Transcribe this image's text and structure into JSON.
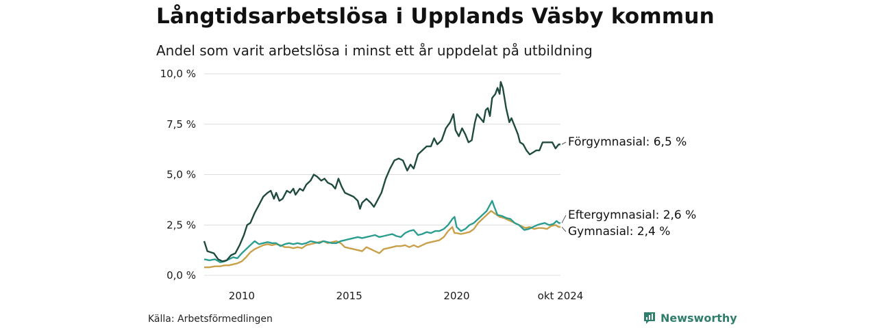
{
  "title": "Långtidsarbetslösa i Upplands Väsby kommun",
  "subtitle": "Andel som varit arbetslösa i minst ett år uppdelat på utbildning",
  "source": "Källa: Arbetsförmedlingen",
  "brand": {
    "name": "Newsworthy",
    "icon": "newsworthy-logo-icon",
    "color": "#2f7d6b"
  },
  "chart_data": {
    "type": "line",
    "title": "Långtidsarbetslösa i Upplands Väsby kommun",
    "subtitle": "Andel som varit arbetslösa i minst ett år uppdelat på utbildning",
    "xlabel": "",
    "ylabel": "",
    "x_range": [
      2008.25,
      2024.83
    ],
    "ylim": [
      0,
      10
    ],
    "y_ticks": [
      0,
      2.5,
      5,
      7.5,
      10
    ],
    "y_tick_labels": [
      "0,0 %",
      "2,5 %",
      "5,0 %",
      "7,5 %",
      "10,0 %"
    ],
    "x_ticks": [
      2010,
      2015,
      2020,
      2024.83
    ],
    "x_tick_labels": [
      "2010",
      "2015",
      "2020",
      "okt 2024"
    ],
    "grid": "horizontal",
    "series": [
      {
        "name": "Förgymnasial",
        "label": "Förgymnasial: 6,5 %",
        "color": "#1e4a3f",
        "points": [
          [
            2008.25,
            1.7
          ],
          [
            2008.4,
            1.2
          ],
          [
            2008.7,
            1.1
          ],
          [
            2008.9,
            0.8
          ],
          [
            2009.1,
            0.7
          ],
          [
            2009.3,
            0.75
          ],
          [
            2009.5,
            1.0
          ],
          [
            2009.7,
            1.1
          ],
          [
            2009.9,
            1.5
          ],
          [
            2010.1,
            2.0
          ],
          [
            2010.25,
            2.5
          ],
          [
            2010.4,
            2.6
          ],
          [
            2010.6,
            3.1
          ],
          [
            2010.8,
            3.5
          ],
          [
            2011.0,
            3.9
          ],
          [
            2011.2,
            4.1
          ],
          [
            2011.35,
            4.2
          ],
          [
            2011.5,
            3.8
          ],
          [
            2011.6,
            4.1
          ],
          [
            2011.75,
            3.7
          ],
          [
            2011.9,
            3.8
          ],
          [
            2012.1,
            4.2
          ],
          [
            2012.25,
            4.1
          ],
          [
            2012.4,
            4.3
          ],
          [
            2012.5,
            4.0
          ],
          [
            2012.7,
            4.3
          ],
          [
            2012.85,
            4.2
          ],
          [
            2013.0,
            4.5
          ],
          [
            2013.2,
            4.7
          ],
          [
            2013.35,
            5.0
          ],
          [
            2013.5,
            4.9
          ],
          [
            2013.7,
            4.7
          ],
          [
            2013.85,
            4.8
          ],
          [
            2014.0,
            4.6
          ],
          [
            2014.2,
            4.5
          ],
          [
            2014.35,
            4.3
          ],
          [
            2014.5,
            4.8
          ],
          [
            2014.65,
            4.4
          ],
          [
            2014.8,
            4.1
          ],
          [
            2015.0,
            4.0
          ],
          [
            2015.2,
            3.9
          ],
          [
            2015.4,
            3.7
          ],
          [
            2015.5,
            3.3
          ],
          [
            2015.6,
            3.6
          ],
          [
            2015.8,
            3.8
          ],
          [
            2016.0,
            3.6
          ],
          [
            2016.15,
            3.4
          ],
          [
            2016.3,
            3.7
          ],
          [
            2016.5,
            4.1
          ],
          [
            2016.7,
            4.8
          ],
          [
            2016.9,
            5.3
          ],
          [
            2017.1,
            5.7
          ],
          [
            2017.3,
            5.8
          ],
          [
            2017.5,
            5.7
          ],
          [
            2017.7,
            5.2
          ],
          [
            2017.85,
            5.5
          ],
          [
            2018.0,
            5.3
          ],
          [
            2018.2,
            6.0
          ],
          [
            2018.4,
            6.2
          ],
          [
            2018.6,
            6.4
          ],
          [
            2018.8,
            6.4
          ],
          [
            2018.95,
            6.8
          ],
          [
            2019.1,
            6.5
          ],
          [
            2019.3,
            6.7
          ],
          [
            2019.5,
            7.3
          ],
          [
            2019.7,
            7.6
          ],
          [
            2019.85,
            8.0
          ],
          [
            2019.95,
            7.2
          ],
          [
            2020.1,
            6.9
          ],
          [
            2020.25,
            7.3
          ],
          [
            2020.4,
            7.0
          ],
          [
            2020.55,
            6.6
          ],
          [
            2020.7,
            6.7
          ],
          [
            2020.85,
            7.6
          ],
          [
            2020.95,
            8.0
          ],
          [
            2021.1,
            7.8
          ],
          [
            2021.25,
            7.6
          ],
          [
            2021.35,
            8.2
          ],
          [
            2021.45,
            8.3
          ],
          [
            2021.55,
            7.9
          ],
          [
            2021.65,
            8.8
          ],
          [
            2021.8,
            9.0
          ],
          [
            2021.9,
            9.3
          ],
          [
            2022.0,
            9.0
          ],
          [
            2022.05,
            9.6
          ],
          [
            2022.15,
            9.3
          ],
          [
            2022.3,
            8.3
          ],
          [
            2022.45,
            7.6
          ],
          [
            2022.55,
            7.8
          ],
          [
            2022.7,
            7.4
          ],
          [
            2022.85,
            7.0
          ],
          [
            2022.95,
            6.6
          ],
          [
            2023.1,
            6.5
          ],
          [
            2023.25,
            6.2
          ],
          [
            2023.4,
            6.0
          ],
          [
            2023.55,
            6.1
          ],
          [
            2023.7,
            6.2
          ],
          [
            2023.85,
            6.2
          ],
          [
            2024.0,
            6.6
          ],
          [
            2024.15,
            6.6
          ],
          [
            2024.3,
            6.6
          ],
          [
            2024.45,
            6.6
          ],
          [
            2024.6,
            6.3
          ],
          [
            2024.75,
            6.5
          ],
          [
            2024.83,
            6.5
          ]
        ]
      },
      {
        "name": "Eftergymnasial",
        "label": "Eftergymnasial: 2,6 %",
        "color": "#2a9d8f",
        "points": [
          [
            2008.25,
            0.8
          ],
          [
            2008.5,
            0.75
          ],
          [
            2008.75,
            0.8
          ],
          [
            2009.0,
            0.65
          ],
          [
            2009.2,
            0.7
          ],
          [
            2009.4,
            0.8
          ],
          [
            2009.6,
            0.9
          ],
          [
            2009.8,
            0.85
          ],
          [
            2010.0,
            1.1
          ],
          [
            2010.2,
            1.3
          ],
          [
            2010.4,
            1.5
          ],
          [
            2010.6,
            1.7
          ],
          [
            2010.8,
            1.55
          ],
          [
            2011.0,
            1.6
          ],
          [
            2011.2,
            1.65
          ],
          [
            2011.4,
            1.6
          ],
          [
            2011.6,
            1.6
          ],
          [
            2011.8,
            1.45
          ],
          [
            2012.0,
            1.55
          ],
          [
            2012.2,
            1.6
          ],
          [
            2012.4,
            1.55
          ],
          [
            2012.6,
            1.6
          ],
          [
            2012.8,
            1.55
          ],
          [
            2013.0,
            1.6
          ],
          [
            2013.2,
            1.7
          ],
          [
            2013.4,
            1.65
          ],
          [
            2013.6,
            1.6
          ],
          [
            2013.8,
            1.7
          ],
          [
            2014.0,
            1.65
          ],
          [
            2014.2,
            1.6
          ],
          [
            2014.4,
            1.6
          ],
          [
            2014.6,
            1.7
          ],
          [
            2014.8,
            1.75
          ],
          [
            2015.0,
            1.8
          ],
          [
            2015.2,
            1.85
          ],
          [
            2015.4,
            1.9
          ],
          [
            2015.6,
            1.85
          ],
          [
            2015.8,
            1.9
          ],
          [
            2016.0,
            1.95
          ],
          [
            2016.2,
            2.0
          ],
          [
            2016.4,
            1.9
          ],
          [
            2016.6,
            1.95
          ],
          [
            2016.8,
            2.0
          ],
          [
            2017.0,
            2.05
          ],
          [
            2017.2,
            1.95
          ],
          [
            2017.4,
            1.9
          ],
          [
            2017.6,
            2.1
          ],
          [
            2017.8,
            2.2
          ],
          [
            2018.0,
            2.25
          ],
          [
            2018.2,
            2.0
          ],
          [
            2018.4,
            2.05
          ],
          [
            2018.6,
            2.15
          ],
          [
            2018.8,
            2.1
          ],
          [
            2019.0,
            2.2
          ],
          [
            2019.2,
            2.2
          ],
          [
            2019.4,
            2.3
          ],
          [
            2019.6,
            2.5
          ],
          [
            2019.8,
            2.8
          ],
          [
            2019.9,
            2.9
          ],
          [
            2020.0,
            2.4
          ],
          [
            2020.2,
            2.2
          ],
          [
            2020.4,
            2.3
          ],
          [
            2020.6,
            2.5
          ],
          [
            2020.8,
            2.6
          ],
          [
            2021.0,
            2.8
          ],
          [
            2021.2,
            3.0
          ],
          [
            2021.4,
            3.2
          ],
          [
            2021.55,
            3.5
          ],
          [
            2021.65,
            3.7
          ],
          [
            2021.75,
            3.4
          ],
          [
            2021.9,
            3.0
          ],
          [
            2022.1,
            2.95
          ],
          [
            2022.3,
            2.85
          ],
          [
            2022.5,
            2.8
          ],
          [
            2022.7,
            2.6
          ],
          [
            2022.9,
            2.5
          ],
          [
            2023.0,
            2.4
          ],
          [
            2023.15,
            2.25
          ],
          [
            2023.35,
            2.3
          ],
          [
            2023.55,
            2.4
          ],
          [
            2023.75,
            2.5
          ],
          [
            2023.9,
            2.55
          ],
          [
            2024.1,
            2.6
          ],
          [
            2024.3,
            2.5
          ],
          [
            2024.5,
            2.55
          ],
          [
            2024.65,
            2.7
          ],
          [
            2024.75,
            2.6
          ],
          [
            2024.83,
            2.6
          ]
        ]
      },
      {
        "name": "Gymnasial",
        "label": "Gymnasial: 2,4 %",
        "color": "#c9a04a",
        "points": [
          [
            2008.25,
            0.4
          ],
          [
            2008.5,
            0.4
          ],
          [
            2008.75,
            0.45
          ],
          [
            2009.0,
            0.45
          ],
          [
            2009.2,
            0.5
          ],
          [
            2009.4,
            0.5
          ],
          [
            2009.6,
            0.55
          ],
          [
            2009.8,
            0.6
          ],
          [
            2010.0,
            0.7
          ],
          [
            2010.2,
            0.9
          ],
          [
            2010.4,
            1.15
          ],
          [
            2010.6,
            1.3
          ],
          [
            2010.8,
            1.4
          ],
          [
            2011.0,
            1.5
          ],
          [
            2011.2,
            1.55
          ],
          [
            2011.4,
            1.5
          ],
          [
            2011.6,
            1.55
          ],
          [
            2011.8,
            1.5
          ],
          [
            2012.0,
            1.4
          ],
          [
            2012.2,
            1.4
          ],
          [
            2012.4,
            1.35
          ],
          [
            2012.6,
            1.4
          ],
          [
            2012.8,
            1.35
          ],
          [
            2013.0,
            1.5
          ],
          [
            2013.2,
            1.55
          ],
          [
            2013.4,
            1.6
          ],
          [
            2013.6,
            1.65
          ],
          [
            2013.8,
            1.7
          ],
          [
            2014.0,
            1.6
          ],
          [
            2014.2,
            1.65
          ],
          [
            2014.4,
            1.7
          ],
          [
            2014.6,
            1.6
          ],
          [
            2014.8,
            1.4
          ],
          [
            2015.0,
            1.35
          ],
          [
            2015.2,
            1.3
          ],
          [
            2015.4,
            1.25
          ],
          [
            2015.6,
            1.2
          ],
          [
            2015.8,
            1.4
          ],
          [
            2016.0,
            1.3
          ],
          [
            2016.2,
            1.2
          ],
          [
            2016.4,
            1.1
          ],
          [
            2016.6,
            1.3
          ],
          [
            2016.8,
            1.35
          ],
          [
            2017.0,
            1.4
          ],
          [
            2017.2,
            1.45
          ],
          [
            2017.4,
            1.45
          ],
          [
            2017.6,
            1.5
          ],
          [
            2017.8,
            1.4
          ],
          [
            2018.0,
            1.5
          ],
          [
            2018.2,
            1.4
          ],
          [
            2018.4,
            1.5
          ],
          [
            2018.6,
            1.6
          ],
          [
            2018.8,
            1.65
          ],
          [
            2019.0,
            1.7
          ],
          [
            2019.2,
            1.75
          ],
          [
            2019.4,
            1.9
          ],
          [
            2019.6,
            2.2
          ],
          [
            2019.8,
            2.4
          ],
          [
            2019.9,
            2.1
          ],
          [
            2020.0,
            2.1
          ],
          [
            2020.2,
            2.05
          ],
          [
            2020.4,
            2.1
          ],
          [
            2020.6,
            2.15
          ],
          [
            2020.8,
            2.3
          ],
          [
            2021.0,
            2.6
          ],
          [
            2021.2,
            2.8
          ],
          [
            2021.4,
            3.0
          ],
          [
            2021.6,
            3.2
          ],
          [
            2021.8,
            3.05
          ],
          [
            2022.0,
            2.9
          ],
          [
            2022.2,
            2.85
          ],
          [
            2022.4,
            2.75
          ],
          [
            2022.6,
            2.65
          ],
          [
            2022.8,
            2.55
          ],
          [
            2023.0,
            2.45
          ],
          [
            2023.2,
            2.35
          ],
          [
            2023.4,
            2.4
          ],
          [
            2023.6,
            2.3
          ],
          [
            2023.8,
            2.35
          ],
          [
            2024.0,
            2.35
          ],
          [
            2024.2,
            2.3
          ],
          [
            2024.4,
            2.45
          ],
          [
            2024.6,
            2.5
          ],
          [
            2024.75,
            2.4
          ],
          [
            2024.83,
            2.4
          ]
        ]
      }
    ]
  }
}
